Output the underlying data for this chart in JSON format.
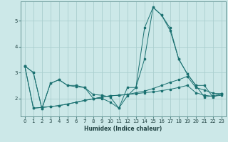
{
  "xlabel": "Humidex (Indice chaleur)",
  "bg_color": "#cce8e8",
  "line_color": "#1a7070",
  "grid_color": "#aacece",
  "xlim": [
    -0.5,
    23.5
  ],
  "ylim": [
    1.3,
    5.75
  ],
  "xticks": [
    0,
    1,
    2,
    3,
    4,
    5,
    6,
    7,
    8,
    9,
    10,
    11,
    12,
    13,
    14,
    15,
    16,
    17,
    18,
    19,
    20,
    21,
    22,
    23
  ],
  "yticks": [
    2,
    3,
    4,
    5
  ],
  "series": [
    {
      "x": [
        0,
        1,
        2,
        3,
        4,
        5,
        6,
        7,
        8,
        9,
        10,
        11,
        12,
        13,
        14,
        15,
        16,
        17,
        18,
        19,
        20,
        21,
        22,
        23
      ],
      "y": [
        3.25,
        3.0,
        1.6,
        2.58,
        2.72,
        2.5,
        2.5,
        2.42,
        2.15,
        2.12,
        2.05,
        1.62,
        2.1,
        2.42,
        4.72,
        5.52,
        5.22,
        4.72,
        3.52,
        2.95,
        2.5,
        2.05,
        2.1,
        2.18
      ]
    },
    {
      "x": [
        0,
        1,
        2,
        3,
        4,
        5,
        6,
        7,
        8,
        9,
        10,
        11,
        12,
        13,
        14,
        15,
        16,
        17,
        18,
        19,
        20,
        21,
        22,
        23
      ],
      "y": [
        3.25,
        3.0,
        1.6,
        2.58,
        2.72,
        2.5,
        2.45,
        2.42,
        2.0,
        2.0,
        1.85,
        1.62,
        2.42,
        2.42,
        3.52,
        5.52,
        5.22,
        4.62,
        3.52,
        2.95,
        2.5,
        2.5,
        2.05,
        2.18
      ]
    },
    {
      "x": [
        0,
        1,
        2,
        3,
        4,
        5,
        6,
        7,
        8,
        9,
        10,
        11,
        12,
        13,
        14,
        15,
        16,
        17,
        18,
        19,
        20,
        21,
        22,
        23
      ],
      "y": [
        3.25,
        1.62,
        1.65,
        1.68,
        1.72,
        1.78,
        1.85,
        1.92,
        1.98,
        2.05,
        2.1,
        2.12,
        2.15,
        2.18,
        2.22,
        2.25,
        2.3,
        2.35,
        2.42,
        2.5,
        2.22,
        2.12,
        2.08,
        2.12
      ]
    },
    {
      "x": [
        0,
        1,
        2,
        3,
        4,
        5,
        6,
        7,
        8,
        9,
        10,
        11,
        12,
        13,
        14,
        15,
        16,
        17,
        18,
        19,
        20,
        21,
        22,
        23
      ],
      "y": [
        3.25,
        1.62,
        1.65,
        1.68,
        1.72,
        1.78,
        1.85,
        1.92,
        1.98,
        2.05,
        2.1,
        2.12,
        2.15,
        2.22,
        2.28,
        2.38,
        2.5,
        2.62,
        2.72,
        2.85,
        2.42,
        2.32,
        2.2,
        2.18
      ]
    }
  ]
}
